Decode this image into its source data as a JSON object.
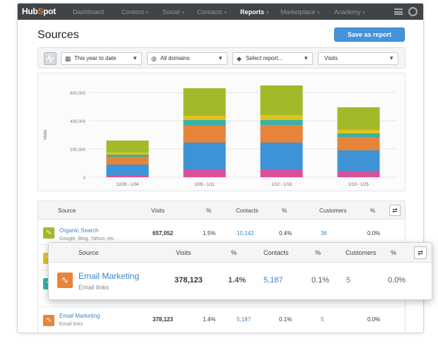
{
  "nav": {
    "logo": "HubSpot",
    "items": [
      "Dashboard",
      "Content",
      "Social",
      "Contacts",
      "Reports",
      "Marketplace",
      "Academy"
    ],
    "active": "Reports"
  },
  "page": {
    "title": "Sources",
    "save_label": "Save as report"
  },
  "filters": {
    "date": "This year to date",
    "domains": "All domains",
    "report": "Select report...",
    "metric": "Visits"
  },
  "colors": {
    "pink": "#d9509a",
    "blue": "#3d93d6",
    "orange": "#e6853a",
    "teal": "#3ab1a8",
    "yellow": "#e3c21f",
    "olive": "#a3b92a",
    "accent": "#4594d9"
  },
  "chart_data": {
    "type": "bar",
    "stacked": true,
    "ylabel": "Visits",
    "ylim": [
      0,
      600000
    ],
    "yticks": [
      "600,000",
      "400,000",
      "200,000",
      "0"
    ],
    "categories": [
      "12/29 - 1/04",
      "1/05 - 1/11",
      "1/12 - 1/18",
      "1/19 - 1/25"
    ],
    "series": [
      {
        "color": "#d9509a",
        "values": [
          15000,
          55000,
          55000,
          45000
        ]
      },
      {
        "color": "#3d93d6",
        "values": [
          75000,
          190000,
          190000,
          145000
        ]
      },
      {
        "color": "#e6853a",
        "values": [
          55000,
          120000,
          125000,
          95000
        ]
      },
      {
        "color": "#3ab1a8",
        "values": [
          15000,
          40000,
          35000,
          25000
        ]
      },
      {
        "color": "#e3c21f",
        "values": [
          15000,
          30000,
          35000,
          25000
        ]
      },
      {
        "color": "#a3b92a",
        "values": [
          85000,
          195000,
          210000,
          160000
        ]
      }
    ],
    "grid": true
  },
  "table": {
    "headers": [
      "Source",
      "Visits",
      "%",
      "Contacts",
      "%",
      "Customers",
      "%"
    ],
    "rows": [
      {
        "name": "Organic Search",
        "sub": "Google, Bing, Yahoo, etc.",
        "visits": "657,052",
        "visits_pct": "1.5%",
        "contacts": "10,142",
        "contacts_pct": "0.4%",
        "customers": "36",
        "customers_pct": "0.0%",
        "color": "#a3b92a"
      },
      {
        "name": "Email Marketing",
        "sub": "Email links",
        "visits": "378,123",
        "visits_pct": "1.4%",
        "contacts": "5,187",
        "contacts_pct": "0.1%",
        "customers": "5",
        "customers_pct": "0.0%",
        "color": "#e6853a"
      }
    ]
  },
  "popup": {
    "headers": [
      "Source",
      "Visits",
      "%",
      "Contacts",
      "%",
      "Customers",
      "%"
    ],
    "row": {
      "name": "Email Marketing",
      "sub": "Email links",
      "visits": "378,123",
      "visits_pct": "1.4%",
      "contacts": "5,187",
      "contacts_pct": "0.1%",
      "customers": "5",
      "customers_pct": "0.0%"
    }
  }
}
